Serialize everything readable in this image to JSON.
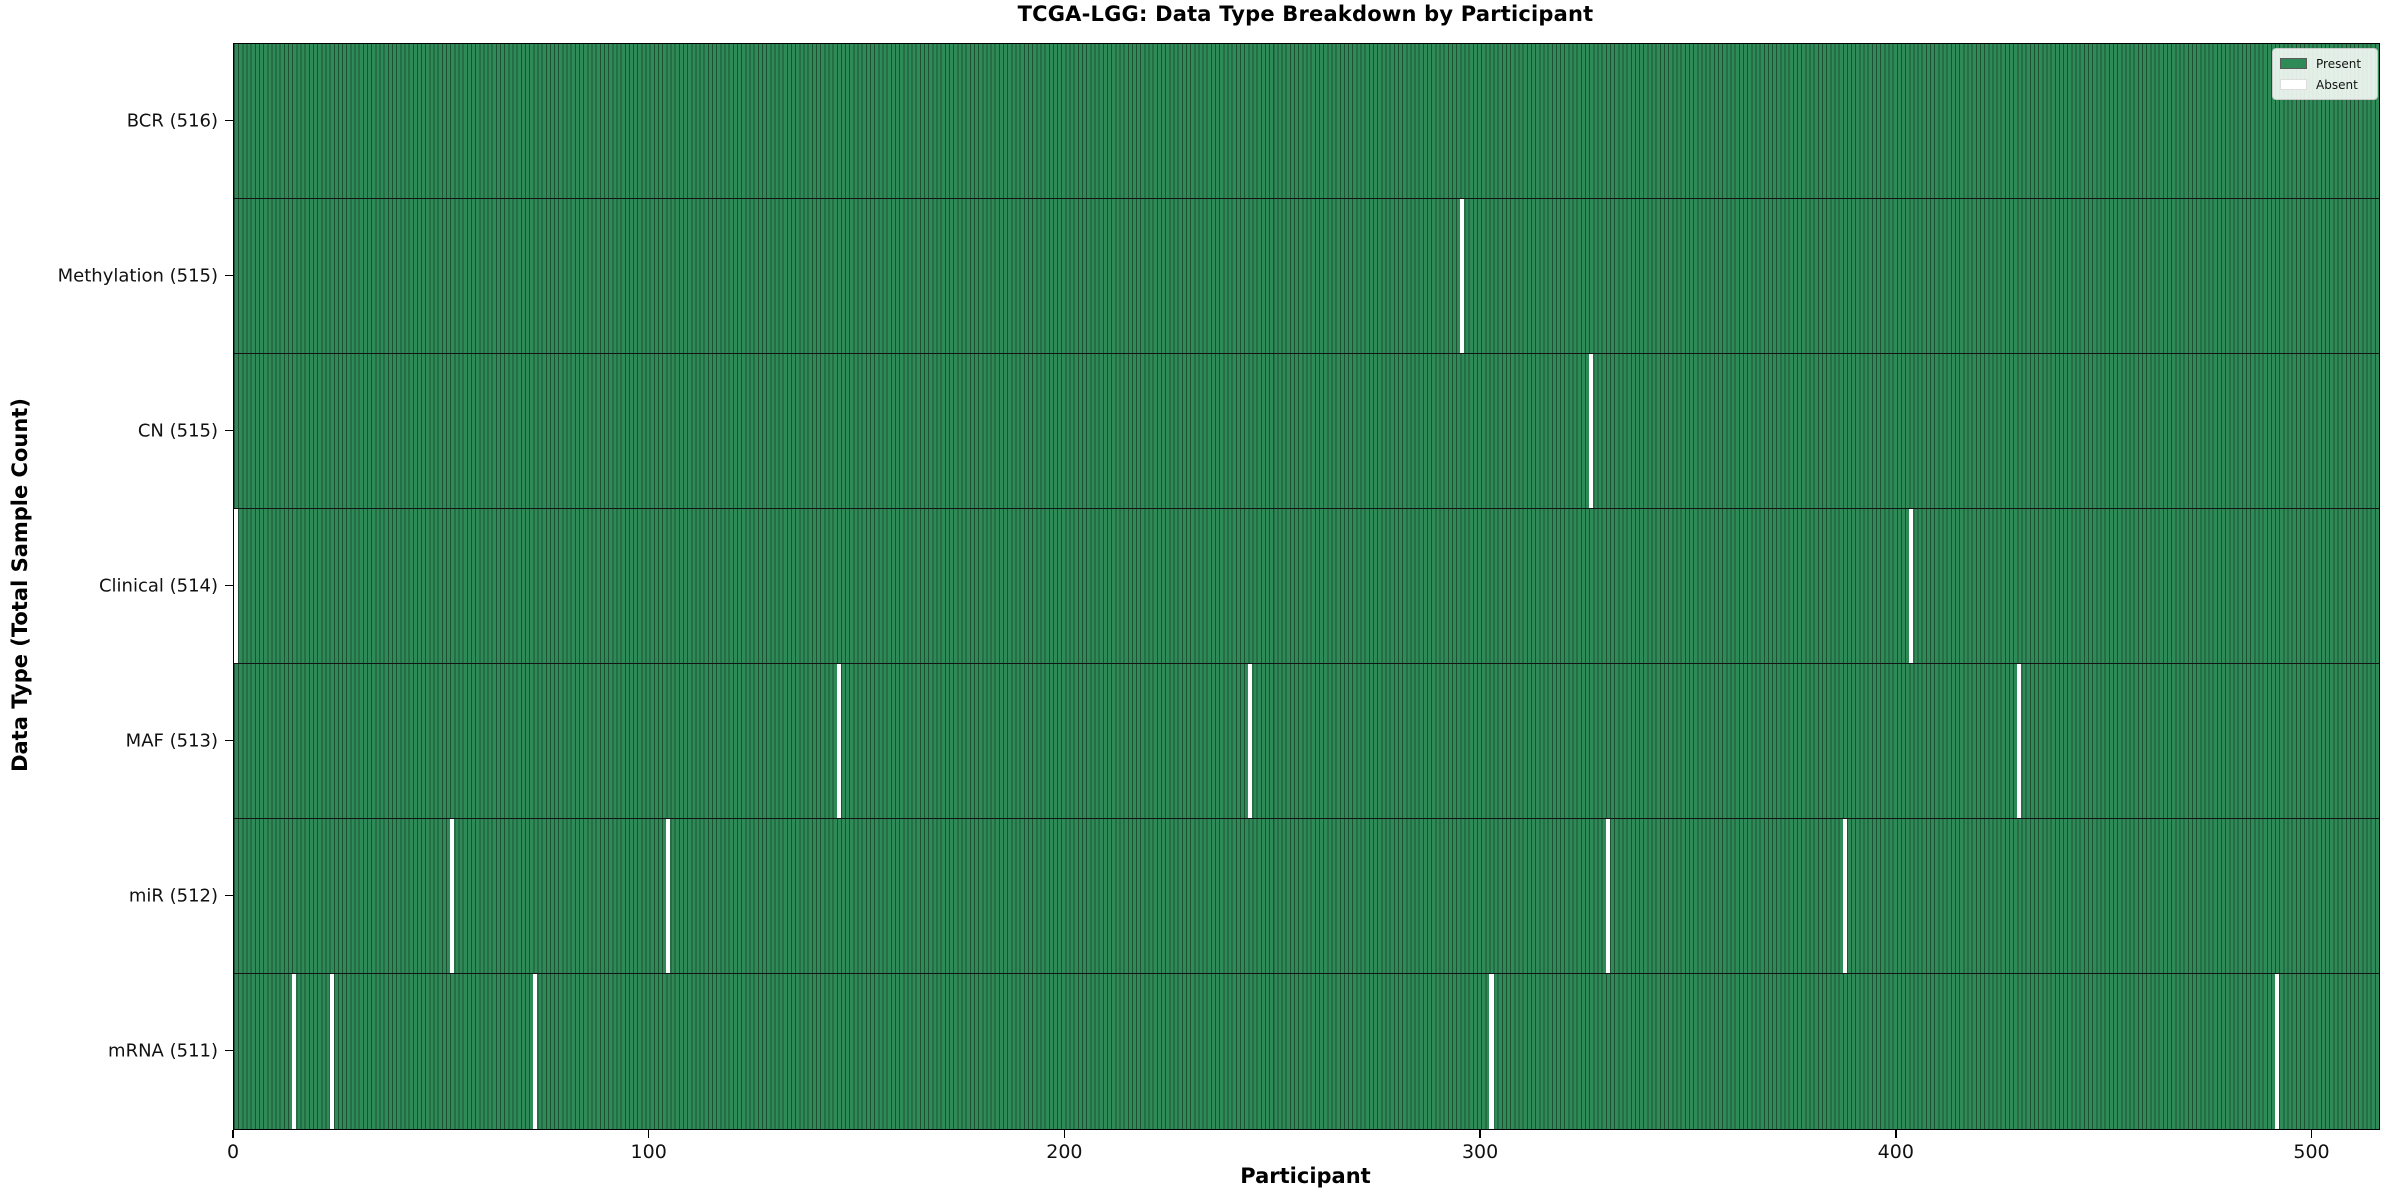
{
  "figure": {
    "title": "TCGA-LGG: Data Type Breakdown by Participant"
  },
  "chart_data": {
    "type": "heatmap",
    "title": "TCGA-LGG: Data Type Breakdown by Participant",
    "xlabel": "Participant",
    "ylabel": "Data Type (Total Sample Count)",
    "x_ticks": [
      0,
      100,
      200,
      300,
      400,
      500
    ],
    "xlim": [
      0,
      516
    ],
    "n_participants": 516,
    "grid": false,
    "legend": {
      "position": "upper right",
      "entries": [
        {
          "label": "Present",
          "color": "#2e8b57"
        },
        {
          "label": "Absent",
          "color": "#ffffff"
        }
      ]
    },
    "rows": [
      {
        "label": "BCR (516)",
        "data_type": "BCR",
        "total": 516,
        "absent_participants": []
      },
      {
        "label": "Methylation (515)",
        "data_type": "Methylation",
        "total": 515,
        "absent_participants": [
          295
        ]
      },
      {
        "label": "CN (515)",
        "data_type": "CN",
        "total": 515,
        "absent_participants": [
          326
        ]
      },
      {
        "label": "Clinical (514)",
        "data_type": "Clinical",
        "total": 514,
        "absent_participants": [
          0,
          403
        ]
      },
      {
        "label": "MAF (513)",
        "data_type": "MAF",
        "total": 513,
        "absent_participants": [
          145,
          244,
          429
        ]
      },
      {
        "label": "miR (512)",
        "data_type": "miR",
        "total": 512,
        "absent_participants": [
          52,
          104,
          330,
          387
        ]
      },
      {
        "label": "mRNA (511)",
        "data_type": "mRNA",
        "total": 511,
        "absent_participants": [
          14,
          23,
          72,
          302,
          491
        ]
      }
    ],
    "colors": {
      "present": "#2e8b57",
      "cell_edge": "#1e5134",
      "absent": "#ffffff",
      "row_divider": "#141414",
      "spine": "#000000"
    }
  }
}
